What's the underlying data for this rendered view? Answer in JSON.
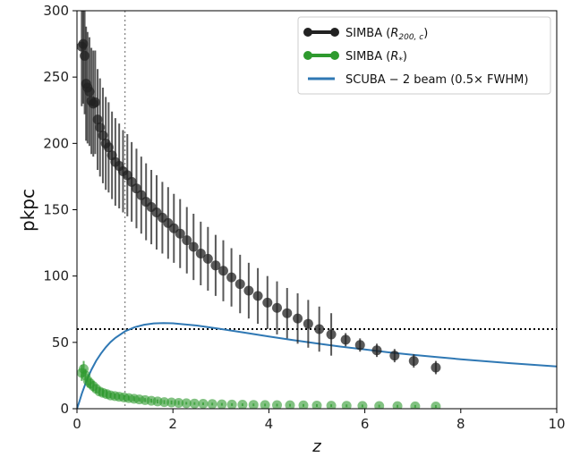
{
  "chart_data": {
    "type": "scatter",
    "xlabel": "z",
    "ylabel": "pkpc",
    "xlim": [
      0,
      10
    ],
    "ylim": [
      0,
      300
    ],
    "x_ticks": [
      0,
      2,
      4,
      6,
      8,
      10
    ],
    "y_ticks": [
      0,
      50,
      100,
      150,
      200,
      250,
      300
    ],
    "grid": false,
    "legend_position": "top-right",
    "reference_lines": {
      "vertical_z": 1.0,
      "horizontal_pkpc": 60
    },
    "series": [
      {
        "name": "SIMBA (R_200,c)",
        "legend_text": "SIMBA (",
        "legend_math": "R",
        "legend_sub": "200, c",
        "color": "#222222",
        "style": "markers-with-errorbars",
        "x": [
          0.1,
          0.13,
          0.16,
          0.19,
          0.22,
          0.26,
          0.3,
          0.34,
          0.38,
          0.43,
          0.48,
          0.54,
          0.6,
          0.66,
          0.73,
          0.8,
          0.88,
          0.96,
          1.05,
          1.14,
          1.24,
          1.34,
          1.44,
          1.55,
          1.66,
          1.78,
          1.9,
          2.02,
          2.15,
          2.29,
          2.43,
          2.58,
          2.73,
          2.89,
          3.05,
          3.22,
          3.4,
          3.58,
          3.77,
          3.97,
          4.17,
          4.38,
          4.6,
          4.82,
          5.05,
          5.3,
          5.6,
          5.9,
          6.25,
          6.62,
          7.02,
          7.48
        ],
        "y": [
          273,
          275,
          266,
          245,
          242,
          239,
          232,
          230,
          231,
          218,
          212,
          206,
          200,
          197,
          191,
          186,
          183,
          179,
          176,
          171,
          166,
          161,
          156,
          152,
          148,
          144,
          140,
          136,
          132,
          127,
          122,
          117,
          113,
          108,
          104,
          99,
          94,
          89,
          85,
          80,
          76,
          72,
          68,
          64,
          60,
          56,
          52,
          48,
          44,
          40,
          36,
          31
        ],
        "yerr": [
          45,
          45,
          44,
          43,
          42,
          41,
          40,
          40,
          39,
          38,
          37,
          36,
          35,
          34,
          33,
          33,
          32,
          31,
          31,
          30,
          30,
          29,
          29,
          28,
          28,
          27,
          27,
          26,
          26,
          25,
          25,
          24,
          24,
          23,
          23,
          22,
          22,
          21,
          21,
          20,
          20,
          19,
          19,
          18,
          17,
          16,
          5,
          5,
          5,
          5,
          5,
          5
        ]
      },
      {
        "name": "SIMBA (R_*)",
        "legend_text": "SIMBA (",
        "legend_math": "R",
        "legend_sub": "*",
        "color": "#2e9a2e",
        "style": "markers-with-errorbars",
        "x": [
          0.1,
          0.14,
          0.18,
          0.23,
          0.28,
          0.34,
          0.4,
          0.47,
          0.54,
          0.62,
          0.7,
          0.79,
          0.88,
          0.98,
          1.08,
          1.19,
          1.3,
          1.42,
          1.55,
          1.68,
          1.82,
          1.97,
          2.12,
          2.28,
          2.45,
          2.63,
          2.82,
          3.02,
          3.23,
          3.45,
          3.68,
          3.92,
          4.17,
          4.44,
          4.72,
          5.0,
          5.3,
          5.62,
          5.95,
          6.3,
          6.68,
          7.05,
          7.48
        ],
        "y": [
          27,
          30,
          25,
          21,
          19,
          17,
          15,
          13,
          12,
          11,
          10,
          9.5,
          9,
          8.5,
          8,
          7.5,
          7,
          6.5,
          6,
          5.5,
          5,
          4.7,
          4.4,
          4.1,
          3.9,
          3.7,
          3.5,
          3.3,
          3.1,
          3.0,
          2.9,
          2.8,
          2.7,
          2.6,
          2.5,
          2.4,
          2.3,
          2.2,
          2.1,
          2.0,
          1.9,
          1.8,
          1.7
        ],
        "yerr": [
          6,
          6,
          5,
          5,
          4,
          4,
          3,
          3,
          3,
          3,
          2,
          2,
          2,
          2,
          2,
          2,
          1.5,
          1.5,
          1.5,
          1.5,
          1.5,
          1.5,
          1.5,
          1,
          1,
          1,
          1,
          1,
          1,
          1,
          1,
          1,
          1,
          1,
          1,
          1,
          1,
          1,
          1,
          1,
          1,
          1,
          1
        ]
      },
      {
        "name": "SCUBA-2 beam (0.5x FWHM)",
        "legend_text": "SCUBA − 2 beam (0.5× FWHM)",
        "color": "#2f78b4",
        "style": "line",
        "x": [
          0.0,
          0.05,
          0.1,
          0.2,
          0.3,
          0.4,
          0.5,
          0.6,
          0.7,
          0.8,
          1.0,
          1.2,
          1.4,
          1.6,
          1.8,
          2.0,
          2.5,
          3.0,
          3.5,
          4.0,
          4.5,
          5.0,
          5.5,
          6.0,
          6.5,
          7.0,
          7.5,
          8.0,
          8.5,
          9.0,
          9.5,
          10.0
        ],
        "y": [
          0.0,
          5.4,
          11.3,
          21.2,
          29.3,
          36.1,
          41.6,
          46.3,
          50.2,
          53.4,
          58.3,
          61.4,
          63.3,
          64.3,
          64.6,
          64.4,
          62.7,
          60.1,
          57.3,
          54.5,
          51.8,
          49.2,
          46.8,
          44.6,
          42.5,
          40.6,
          38.9,
          37.3,
          35.8,
          34.4,
          33.1,
          31.9
        ]
      }
    ]
  }
}
